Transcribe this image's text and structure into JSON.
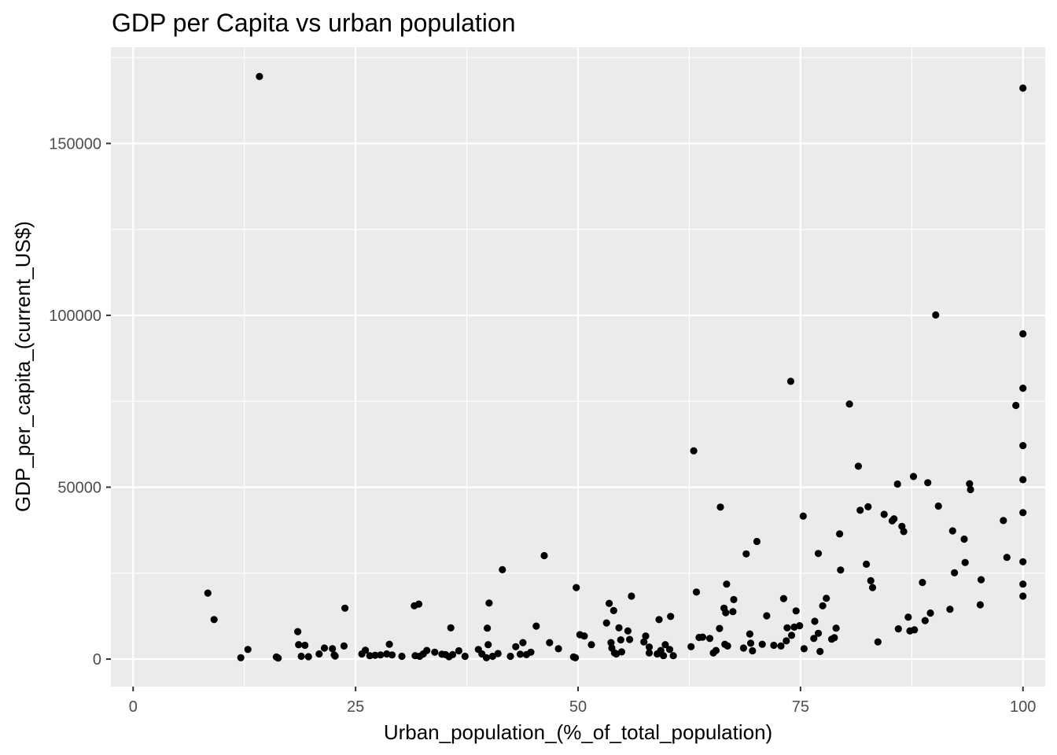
{
  "chart_data": {
    "type": "scatter",
    "title": "GDP per Capita vs urban population",
    "xlabel": "Urban_population_(%_of_total_population)",
    "ylabel": "GDP_per_capita_(current_US$)",
    "xlim": [
      -2.5,
      102.5
    ],
    "ylim": [
      -8000,
      178000
    ],
    "x_ticks": [
      0,
      25,
      50,
      75,
      100
    ],
    "x_tick_labels": [
      "0",
      "25",
      "50",
      "75",
      "100"
    ],
    "y_ticks": [
      0,
      50000,
      100000,
      150000
    ],
    "y_tick_labels": [
      "0",
      "50000",
      "100000",
      "150000"
    ],
    "grid": true,
    "background": "#ebebeb",
    "point_color": "#000000",
    "points": [
      [
        8.4,
        19200
      ],
      [
        9.1,
        11500
      ],
      [
        12.1,
        400
      ],
      [
        12.9,
        2800
      ],
      [
        14.2,
        169500
      ],
      [
        16.1,
        600
      ],
      [
        16.3,
        300
      ],
      [
        18.5,
        8000
      ],
      [
        18.6,
        4200
      ],
      [
        18.9,
        800
      ],
      [
        19.3,
        4000
      ],
      [
        19.7,
        700
      ],
      [
        20.9,
        1500
      ],
      [
        21.5,
        3200
      ],
      [
        22.4,
        3000
      ],
      [
        22.6,
        1200
      ],
      [
        22.7,
        900
      ],
      [
        23.7,
        3800
      ],
      [
        23.8,
        14800
      ],
      [
        25.7,
        1500
      ],
      [
        26.1,
        2600
      ],
      [
        26.6,
        1000
      ],
      [
        27.2,
        1100
      ],
      [
        27.8,
        1200
      ],
      [
        28.5,
        1500
      ],
      [
        28.8,
        4300
      ],
      [
        29.1,
        1200
      ],
      [
        30.2,
        800
      ],
      [
        31.6,
        15500
      ],
      [
        31.7,
        1000
      ],
      [
        32.1,
        16000
      ],
      [
        32.2,
        800
      ],
      [
        32.6,
        1500
      ],
      [
        33.0,
        2500
      ],
      [
        33.9,
        2000
      ],
      [
        34.7,
        1400
      ],
      [
        35.1,
        1300
      ],
      [
        35.5,
        700
      ],
      [
        35.7,
        9100
      ],
      [
        35.9,
        1300
      ],
      [
        36.6,
        2400
      ],
      [
        37.3,
        800
      ],
      [
        38.8,
        2800
      ],
      [
        39.2,
        1500
      ],
      [
        39.7,
        400
      ],
      [
        39.8,
        9000
      ],
      [
        39.9,
        4200
      ],
      [
        40.0,
        16300
      ],
      [
        40.4,
        800
      ],
      [
        41.0,
        1600
      ],
      [
        41.5,
        26000
      ],
      [
        42.4,
        800
      ],
      [
        43.0,
        3600
      ],
      [
        43.5,
        1400
      ],
      [
        43.8,
        4800
      ],
      [
        44.2,
        1300
      ],
      [
        44.7,
        2000
      ],
      [
        45.3,
        9600
      ],
      [
        46.2,
        30100
      ],
      [
        46.8,
        4800
      ],
      [
        47.8,
        3000
      ],
      [
        49.5,
        600
      ],
      [
        49.7,
        400
      ],
      [
        49.8,
        20800
      ],
      [
        50.2,
        7100
      ],
      [
        50.7,
        6700
      ],
      [
        51.5,
        4200
      ],
      [
        53.2,
        10500
      ],
      [
        53.5,
        16200
      ],
      [
        53.7,
        4800
      ],
      [
        53.8,
        3200
      ],
      [
        54.0,
        14100
      ],
      [
        54.1,
        1800
      ],
      [
        54.3,
        1500
      ],
      [
        54.6,
        9100
      ],
      [
        54.9,
        2100
      ],
      [
        54.8,
        5600
      ],
      [
        55.6,
        8200
      ],
      [
        55.8,
        5700
      ],
      [
        56.0,
        18300
      ],
      [
        57.4,
        5000
      ],
      [
        57.6,
        6700
      ],
      [
        58.0,
        3500
      ],
      [
        58.0,
        1800
      ],
      [
        58.9,
        1500
      ],
      [
        59.1,
        11500
      ],
      [
        59.3,
        2500
      ],
      [
        59.6,
        1000
      ],
      [
        59.8,
        4200
      ],
      [
        60.3,
        2800
      ],
      [
        60.4,
        12400
      ],
      [
        60.7,
        1000
      ],
      [
        62.7,
        3600
      ],
      [
        63.0,
        60600
      ],
      [
        63.3,
        19500
      ],
      [
        63.6,
        6300
      ],
      [
        64.0,
        6400
      ],
      [
        64.8,
        6000
      ],
      [
        65.2,
        1800
      ],
      [
        65.5,
        2500
      ],
      [
        65.9,
        8900
      ],
      [
        66.0,
        44200
      ],
      [
        66.4,
        14800
      ],
      [
        66.5,
        4300
      ],
      [
        66.6,
        13500
      ],
      [
        66.7,
        21800
      ],
      [
        66.8,
        3800
      ],
      [
        67.4,
        13800
      ],
      [
        67.5,
        17300
      ],
      [
        68.6,
        3200
      ],
      [
        68.9,
        30600
      ],
      [
        69.3,
        7300
      ],
      [
        69.4,
        4600
      ],
      [
        69.6,
        2400
      ],
      [
        70.1,
        34200
      ],
      [
        70.7,
        4300
      ],
      [
        71.2,
        12600
      ],
      [
        72.0,
        4000
      ],
      [
        72.8,
        3800
      ],
      [
        73.1,
        17600
      ],
      [
        73.4,
        5300
      ],
      [
        73.5,
        9100
      ],
      [
        73.9,
        80800
      ],
      [
        74.0,
        6900
      ],
      [
        74.3,
        9300
      ],
      [
        74.5,
        14000
      ],
      [
        74.9,
        9700
      ],
      [
        75.3,
        41600
      ],
      [
        75.4,
        3000
      ],
      [
        76.5,
        6000
      ],
      [
        76.6,
        11000
      ],
      [
        77.0,
        30700
      ],
      [
        77.0,
        7500
      ],
      [
        77.2,
        2200
      ],
      [
        77.5,
        15500
      ],
      [
        77.9,
        17700
      ],
      [
        78.5,
        5800
      ],
      [
        78.8,
        6200
      ],
      [
        79.0,
        9000
      ],
      [
        79.4,
        36400
      ],
      [
        79.5,
        25900
      ],
      [
        80.5,
        74200
      ],
      [
        81.5,
        56100
      ],
      [
        81.7,
        43300
      ],
      [
        82.4,
        27600
      ],
      [
        82.6,
        44300
      ],
      [
        82.9,
        22800
      ],
      [
        83.1,
        20800
      ],
      [
        83.7,
        5000
      ],
      [
        84.4,
        42100
      ],
      [
        85.3,
        40200
      ],
      [
        85.5,
        40800
      ],
      [
        85.9,
        50900
      ],
      [
        86.0,
        8800
      ],
      [
        86.4,
        38600
      ],
      [
        86.6,
        37100
      ],
      [
        87.1,
        12200
      ],
      [
        87.3,
        8200
      ],
      [
        87.7,
        53100
      ],
      [
        87.8,
        8500
      ],
      [
        88.7,
        22300
      ],
      [
        89.0,
        11200
      ],
      [
        89.3,
        51300
      ],
      [
        89.6,
        13400
      ],
      [
        90.2,
        100100
      ],
      [
        90.5,
        44500
      ],
      [
        91.8,
        14500
      ],
      [
        92.1,
        37300
      ],
      [
        92.3,
        25100
      ],
      [
        93.4,
        34900
      ],
      [
        93.5,
        28100
      ],
      [
        94.0,
        51000
      ],
      [
        94.1,
        49300
      ],
      [
        95.2,
        15800
      ],
      [
        95.3,
        23100
      ],
      [
        97.8,
        40300
      ],
      [
        98.2,
        29600
      ],
      [
        99.2,
        73800
      ],
      [
        100.0,
        166100
      ],
      [
        100.0,
        94600
      ],
      [
        100.0,
        78800
      ],
      [
        100.0,
        62100
      ],
      [
        100.0,
        52200
      ],
      [
        100.0,
        42600
      ],
      [
        100.0,
        28300
      ],
      [
        100.0,
        21800
      ],
      [
        100.0,
        18300
      ]
    ]
  }
}
